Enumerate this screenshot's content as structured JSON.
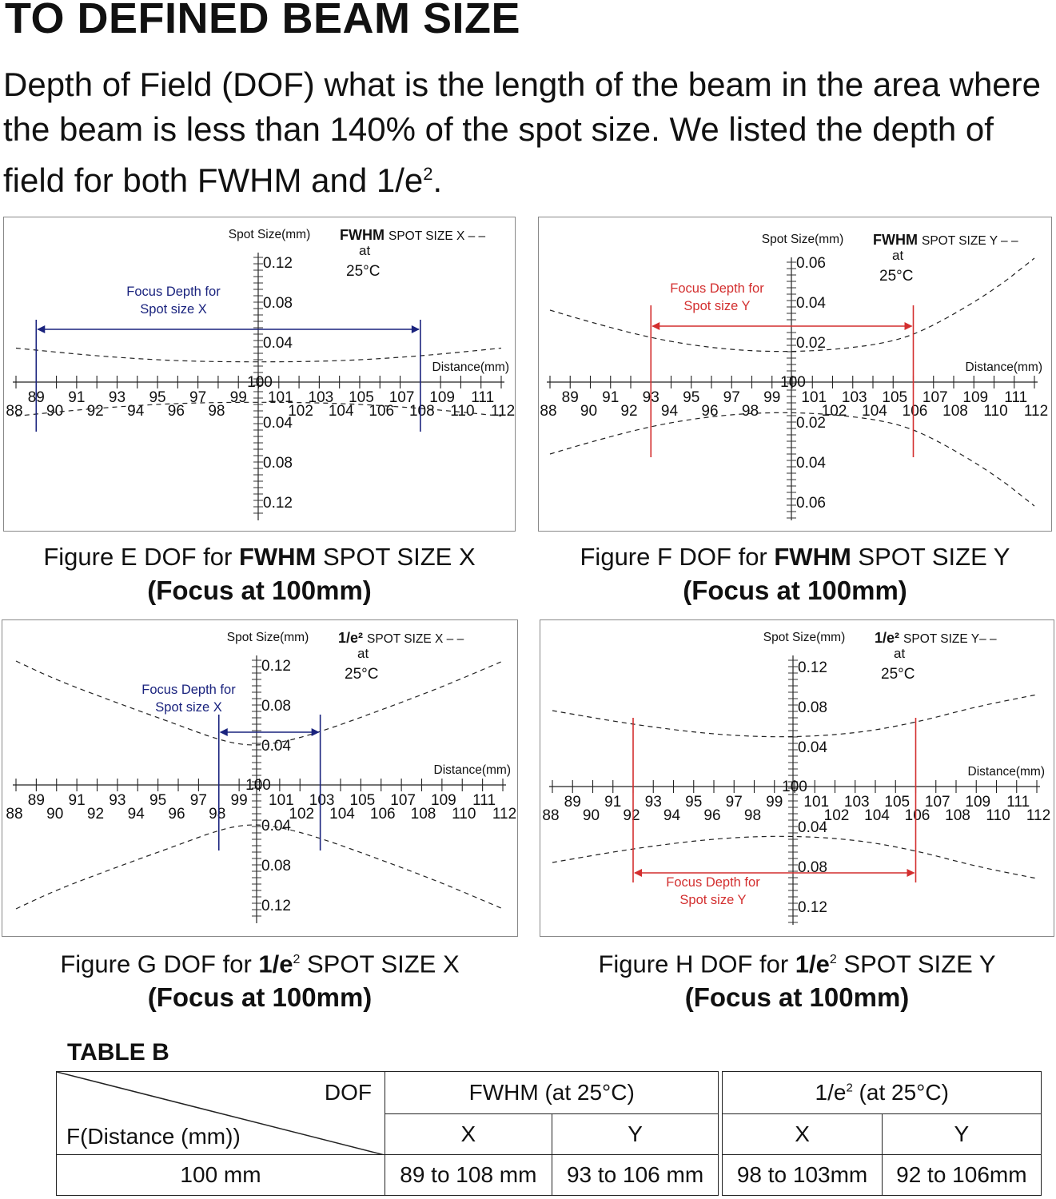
{
  "heading": "TO DEFINED BEAM SIZE",
  "intro": {
    "text": "Depth of Field (DOF) what is the length of the beam in the area where the beam is less than 140% of the spot size. We listed the depth of field for both FWHM and 1/e",
    "sup": "2",
    "end": "."
  },
  "chart_data": [
    {
      "id": "E",
      "type": "line",
      "ylabel": "Spot Size(mm)",
      "xlabel": "Distance(mm)",
      "legend_bold": "FWHM",
      "legend_rest": "SPOT SIZE X – –",
      "legend_at": "at",
      "legend_temp": "25°C",
      "x_range": [
        88,
        112
      ],
      "y_ticks": [
        "0.12",
        "0.08",
        "0.04",
        "100",
        "0.04",
        "0.08",
        "0.12"
      ],
      "y_tick_values": [
        0.12,
        0.08,
        0.04,
        0,
        -0.04,
        -0.08,
        -0.12
      ],
      "y_range": [
        -0.14,
        0.14
      ],
      "focus_label": [
        "Focus Depth for",
        "Spot size X"
      ],
      "focus_color": "#1a237e",
      "dof": [
        89,
        108
      ],
      "series": [
        {
          "x": [
            88,
            92,
            96,
            100,
            104,
            108,
            112
          ],
          "y": [
            0.034,
            0.026,
            0.021,
            0.02,
            0.021,
            0.026,
            0.034
          ]
        },
        {
          "x": [
            88,
            92,
            96,
            100,
            104,
            108,
            112
          ],
          "y": [
            -0.034,
            -0.026,
            -0.021,
            -0.02,
            -0.021,
            -0.026,
            -0.034
          ]
        }
      ],
      "caption_pre": "Figure E DOF for ",
      "caption_bold": "FWHM",
      "caption_post": " SPOT SIZE X",
      "caption_line2": "(Focus at 100mm)"
    },
    {
      "id": "F",
      "type": "line",
      "ylabel": "Spot Size(mm)",
      "xlabel": "Distance(mm)",
      "legend_bold": "FWHM",
      "legend_rest": "SPOT SIZE Y – –",
      "legend_at": "at",
      "legend_temp": "25°C",
      "x_range": [
        88,
        112
      ],
      "y_ticks": [
        "0.06",
        "0.04",
        "0.02",
        "100",
        "0.02",
        "0.04",
        "0.06"
      ],
      "y_tick_values": [
        0.06,
        0.04,
        0.02,
        0,
        -0.02,
        -0.04,
        -0.06
      ],
      "y_range": [
        -0.07,
        0.07
      ],
      "focus_label": [
        "Focus Depth for",
        "Spot size Y"
      ],
      "focus_color": "#d32f2f",
      "dof": [
        93,
        106
      ],
      "series": [
        {
          "x": [
            88,
            90,
            93,
            96,
            99,
            102,
            105,
            107,
            110,
            112
          ],
          "y": [
            0.036,
            0.03,
            0.022,
            0.017,
            0.015,
            0.016,
            0.02,
            0.028,
            0.046,
            0.062
          ]
        },
        {
          "x": [
            88,
            90,
            93,
            96,
            99,
            102,
            105,
            107,
            110,
            112
          ],
          "y": [
            -0.036,
            -0.03,
            -0.022,
            -0.017,
            -0.015,
            -0.016,
            -0.02,
            -0.028,
            -0.046,
            -0.062
          ]
        }
      ],
      "caption_pre": "Figure F DOF for ",
      "caption_bold": "FWHM",
      "caption_post": " SPOT SIZE Y",
      "caption_line2": "(Focus at 100mm)"
    },
    {
      "id": "G",
      "type": "line",
      "ylabel": "Spot Size(mm)",
      "xlabel": "Distance(mm)",
      "legend_bold": "1/e²",
      "legend_rest": "SPOT SIZE X – –",
      "legend_at": "at",
      "legend_temp": "25°C",
      "x_range": [
        88,
        112
      ],
      "y_ticks": [
        "0.12",
        "0.08",
        "0.04",
        "100",
        "0.04",
        "0.08",
        "0.12"
      ],
      "y_tick_values": [
        0.12,
        0.08,
        0.04,
        0,
        -0.04,
        -0.08,
        -0.12
      ],
      "y_range": [
        -0.14,
        0.14
      ],
      "focus_label": [
        "Focus Depth for",
        "Spot size X"
      ],
      "focus_color": "#1a237e",
      "dof": [
        98,
        103
      ],
      "series": [
        {
          "x": [
            88,
            90,
            93,
            96,
            98,
            99.5,
            101,
            103,
            106,
            109,
            112
          ],
          "y": [
            0.124,
            0.105,
            0.082,
            0.06,
            0.045,
            0.039,
            0.042,
            0.053,
            0.075,
            0.098,
            0.124
          ]
        },
        {
          "x": [
            88,
            90,
            93,
            96,
            98,
            99.5,
            101,
            103,
            106,
            109,
            112
          ],
          "y": [
            -0.124,
            -0.105,
            -0.082,
            -0.06,
            -0.045,
            -0.039,
            -0.042,
            -0.053,
            -0.075,
            -0.098,
            -0.124
          ]
        }
      ],
      "caption_pre": "Figure G DOF for ",
      "caption_bold": "1/e",
      "caption_sup": "2",
      "caption_post": " SPOT SIZE X",
      "caption_line2": "(Focus at 100mm)"
    },
    {
      "id": "H",
      "type": "line",
      "ylabel": "Spot Size(mm)",
      "xlabel": "Distance(mm)",
      "legend_bold": "1/e²",
      "legend_rest": "SPOT SIZE Y– –",
      "legend_at": "at",
      "legend_temp": "25°C",
      "x_range": [
        88,
        112
      ],
      "y_ticks": [
        "0.12",
        "0.08",
        "0.04",
        "100",
        "0.04",
        "0.08",
        "0.12"
      ],
      "y_tick_values": [
        0.12,
        0.08,
        0.04,
        0,
        -0.04,
        -0.08,
        -0.12
      ],
      "y_range": [
        -0.14,
        0.14
      ],
      "focus_label": [
        "Focus Depth for",
        "Spot size Y"
      ],
      "focus_color": "#d32f2f",
      "dof": [
        92,
        106
      ],
      "series": [
        {
          "x": [
            88,
            92,
            96,
            99.5,
            103,
            106,
            109,
            112
          ],
          "y": [
            0.076,
            0.062,
            0.052,
            0.049,
            0.053,
            0.064,
            0.08,
            0.092
          ]
        },
        {
          "x": [
            88,
            92,
            96,
            99.5,
            103,
            106,
            109,
            112
          ],
          "y": [
            -0.076,
            -0.062,
            -0.052,
            -0.049,
            -0.053,
            -0.064,
            -0.08,
            -0.092
          ]
        }
      ],
      "caption_pre": "Figure H DOF for ",
      "caption_bold": "1/e",
      "caption_sup": "2",
      "caption_post": " SPOT SIZE Y",
      "caption_line2": "(Focus at 100mm)"
    }
  ],
  "table": {
    "title": "TABLE B",
    "corner_top": "DOF",
    "corner_bottom": "F(Distance (mm))",
    "group1": "FWHM (at 25°C)",
    "group2_pre": "1/e",
    "group2_sup": "2",
    "group2_post": " (at 25°C)",
    "sub": [
      "X",
      "Y",
      "X",
      "Y"
    ],
    "row_label": "100 mm",
    "values": [
      "89 to 108 mm",
      "93 to 106 mm",
      "98 to 103mm",
      "92 to 106mm"
    ]
  }
}
